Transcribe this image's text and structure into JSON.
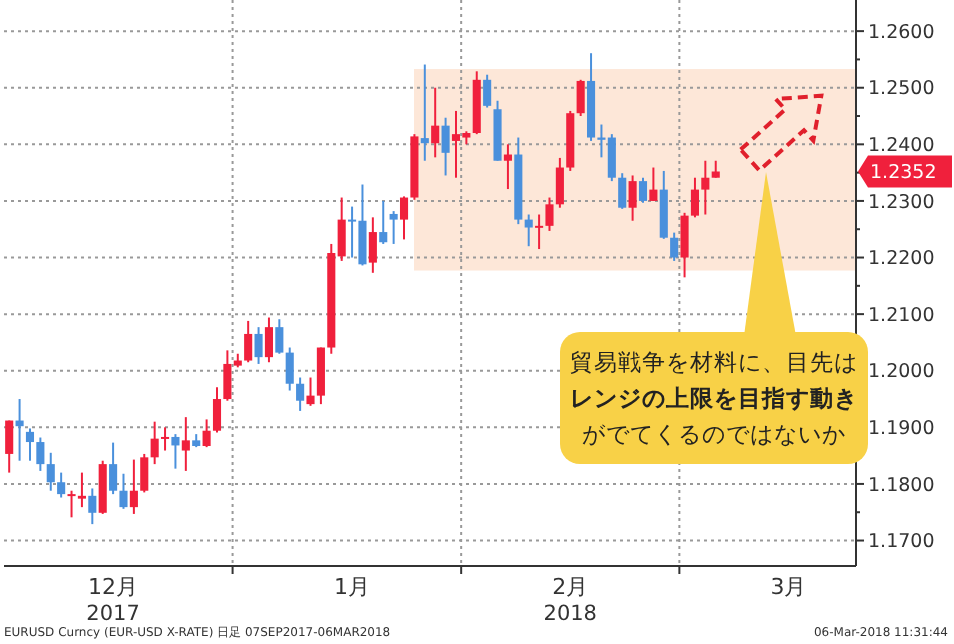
{
  "chart_data": {
    "type": "candlestick",
    "categories": [
      null,
      null,
      null,
      null,
      null,
      null,
      null,
      null,
      null,
      null,
      "12月\n2017",
      null,
      null,
      null,
      null,
      null,
      null,
      null,
      null,
      null,
      null,
      null,
      null,
      null,
      null,
      null,
      null,
      null,
      null,
      null,
      null,
      null,
      null,
      "1月",
      null,
      null,
      null,
      null,
      null,
      null,
      null,
      null,
      null,
      null,
      null,
      null,
      null,
      null,
      null,
      null,
      null,
      null,
      null,
      null,
      "2月\n2018",
      null,
      null,
      null,
      null,
      null,
      null,
      null,
      null,
      null,
      null,
      null,
      null,
      null,
      null,
      null,
      null,
      null,
      null,
      null,
      null,
      "3月",
      null,
      null,
      null,
      null,
      null,
      null
    ],
    "ohlc": [
      [
        1.1853,
        1.1912,
        1.182,
        1.1912
      ],
      [
        1.1912,
        1.195,
        1.1841,
        1.1902
      ],
      [
        1.1892,
        1.1898,
        1.1841,
        1.1874
      ],
      [
        1.1874,
        1.1882,
        1.1823,
        1.1835
      ],
      [
        1.1835,
        1.1855,
        1.1788,
        1.1803
      ],
      [
        1.1803,
        1.182,
        1.1776,
        1.1782
      ],
      [
        1.1779,
        1.1788,
        1.1741,
        1.1782
      ],
      [
        1.1774,
        1.182,
        1.1759,
        1.1779
      ],
      [
        1.1779,
        1.1792,
        1.1729,
        1.1749
      ],
      [
        1.1749,
        1.1841,
        1.1747,
        1.1835
      ],
      [
        1.1835,
        1.1873,
        1.1782,
        1.1788
      ],
      [
        1.1788,
        1.1818,
        1.1756,
        1.1759
      ],
      [
        1.1759,
        1.1843,
        1.1747,
        1.1788
      ],
      [
        1.1788,
        1.1853,
        1.1785,
        1.1847
      ],
      [
        1.1847,
        1.191,
        1.1835,
        1.188
      ],
      [
        1.188,
        1.19,
        1.1859,
        1.1883
      ],
      [
        1.1883,
        1.1888,
        1.1827,
        1.1868
      ],
      [
        1.1859,
        1.1918,
        1.1823,
        1.1877
      ],
      [
        1.1877,
        1.1888,
        1.1865,
        1.1867
      ],
      [
        1.1867,
        1.1914,
        1.1865,
        1.1894
      ],
      [
        1.1894,
        1.1971,
        1.1891,
        1.195
      ],
      [
        1.195,
        1.2036,
        1.1947,
        1.2012
      ],
      [
        1.2009,
        1.203,
        1.2006,
        1.2018
      ],
      [
        1.2018,
        1.2088,
        1.2015,
        1.2065
      ],
      [
        1.2065,
        1.2077,
        1.2012,
        1.2024
      ],
      [
        1.2024,
        1.2094,
        1.2015,
        1.2077
      ],
      [
        1.2077,
        1.2091,
        1.203,
        1.2032
      ],
      [
        1.2032,
        1.2041,
        1.1965,
        1.1977
      ],
      [
        1.1977,
        1.1988,
        1.1929,
        1.1947
      ],
      [
        1.1941,
        1.1988,
        1.1938,
        1.1956
      ],
      [
        1.1956,
        1.2041,
        1.1941,
        1.2041
      ],
      [
        1.2041,
        1.2224,
        1.203,
        1.2208
      ],
      [
        1.2202,
        1.2306,
        1.2194,
        1.2267
      ],
      [
        1.2267,
        1.229,
        1.22,
        1.2265
      ],
      [
        1.2265,
        1.2329,
        1.2186,
        1.2188
      ],
      [
        1.2191,
        1.2271,
        1.2173,
        1.2245
      ],
      [
        1.2245,
        1.23,
        1.2224,
        1.2227
      ],
      [
        1.2277,
        1.2282,
        1.2224,
        1.2267
      ],
      [
        1.2267,
        1.2308,
        1.2232,
        1.2306
      ],
      [
        1.2306,
        1.2418,
        1.2302,
        1.2414
      ],
      [
        1.2411,
        1.2541,
        1.2371,
        1.2402
      ],
      [
        1.2402,
        1.25,
        1.2377,
        1.2433
      ],
      [
        1.2433,
        1.2447,
        1.2345,
        1.2385
      ],
      [
        1.2406,
        1.2459,
        1.2341,
        1.2418
      ],
      [
        1.2412,
        1.2423,
        1.24,
        1.242
      ],
      [
        1.242,
        1.2529,
        1.2418,
        1.2514
      ],
      [
        1.2514,
        1.2523,
        1.2465,
        1.2468
      ],
      [
        1.2462,
        1.2477,
        1.2371,
        1.2371
      ],
      [
        1.2371,
        1.24,
        1.2321,
        1.2382
      ],
      [
        1.2382,
        1.2412,
        1.2259,
        1.2267
      ],
      [
        1.2267,
        1.2276,
        1.222,
        1.2253
      ],
      [
        1.2253,
        1.2276,
        1.2215,
        1.2256
      ],
      [
        1.2256,
        1.2306,
        1.2247,
        1.2294
      ],
      [
        1.2294,
        1.2376,
        1.2288,
        1.2359
      ],
      [
        1.2359,
        1.2459,
        1.2353,
        1.2455
      ],
      [
        1.2455,
        1.2514,
        1.245,
        1.2512
      ],
      [
        1.2512,
        1.2561,
        1.2406,
        1.2412
      ],
      [
        1.2412,
        1.2435,
        1.2377,
        1.2408
      ],
      [
        1.2412,
        1.2418,
        1.2335,
        1.2341
      ],
      [
        1.2341,
        1.2349,
        1.2286,
        1.2288
      ],
      [
        1.2288,
        1.2345,
        1.2265,
        1.2335
      ],
      [
        1.2335,
        1.2341,
        1.2297,
        1.23
      ],
      [
        1.23,
        1.2359,
        1.23,
        1.232
      ],
      [
        1.232,
        1.2353,
        1.2233,
        1.2235
      ],
      [
        1.2235,
        1.2244,
        1.2194,
        1.22
      ],
      [
        1.22,
        1.2279,
        1.2165,
        1.2274
      ],
      [
        1.2274,
        1.2341,
        1.2271,
        1.232
      ],
      [
        1.232,
        1.2371,
        1.2276,
        1.2341
      ],
      [
        1.2341,
        1.2371,
        1.2341,
        1.2352
      ],
      null,
      null,
      null,
      null,
      null,
      null,
      null,
      null,
      null,
      null,
      null,
      null,
      null
    ],
    "ylim": [
      1.1655,
      1.2655
    ],
    "yticks": [
      {
        "value": 1.17,
        "label": "1.1700"
      },
      {
        "value": 1.175,
        "label": null
      },
      {
        "value": 1.18,
        "label": "1.1800"
      },
      {
        "value": 1.185,
        "label": null
      },
      {
        "value": 1.19,
        "label": "1.1900"
      },
      {
        "value": 1.195,
        "label": null
      },
      {
        "value": 1.2,
        "label": "1.2000"
      },
      {
        "value": 1.205,
        "label": null
      },
      {
        "value": 1.21,
        "label": "1.2100"
      },
      {
        "value": 1.215,
        "label": null
      },
      {
        "value": 1.22,
        "label": "1.2200"
      },
      {
        "value": 1.225,
        "label": null
      },
      {
        "value": 1.23,
        "label": "1.2300"
      },
      {
        "value": 1.235,
        "label": null
      },
      {
        "value": 1.24,
        "label": "1.2400"
      },
      {
        "value": 1.245,
        "label": null
      },
      {
        "value": 1.25,
        "label": "1.2500"
      },
      {
        "value": 1.255,
        "label": null
      },
      {
        "value": 1.26,
        "label": "1.2600"
      }
    ],
    "grid": true,
    "bands": [
      {
        "axis": "y",
        "from": 1.2177,
        "to": 1.2533,
        "color": "#fde3d1"
      }
    ],
    "annotations": [
      "貿易戦争を材料に、目先はレンジの上限を目指す動きがでてくるのではないか",
      "EURUSD Curncy (EUR-USD X-RATE) 日足 07SEP2017-06MAR2018",
      "06-Mar-2018 11:31:44",
      "1.2352"
    ]
  }
}
